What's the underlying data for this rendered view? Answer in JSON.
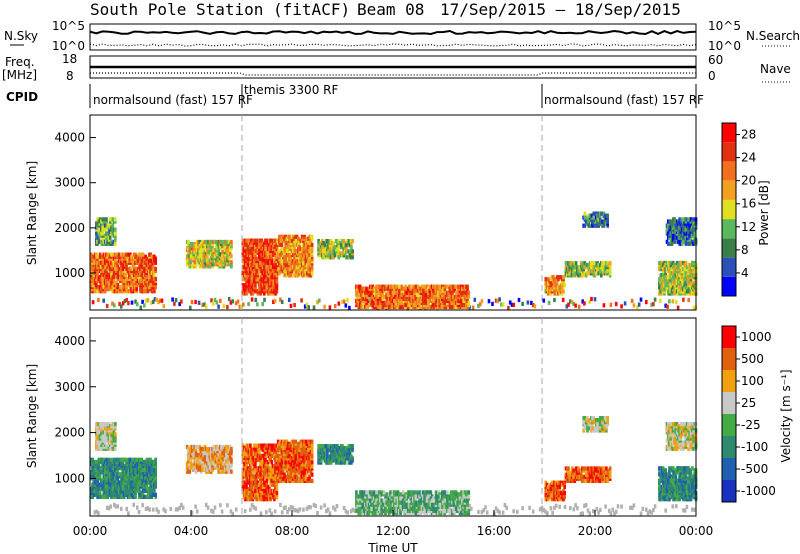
{
  "title": {
    "station": "South Pole Station (fitACF)",
    "beam": "Beam 08",
    "dates": "17/Sep/2015 – 18/Sep/2015"
  },
  "top_panels": {
    "nsky_label": "N.Sky",
    "nsky_ticks": [
      "10^5",
      "10^0"
    ],
    "nsearch_label": "N.Search",
    "nsearch_ticks": [
      "10^5",
      "10^0"
    ],
    "freq_label_1": "Freq.",
    "freq_label_2": "[MHz]",
    "freq_ticks": [
      "18",
      "8"
    ],
    "nave_label": "Nave",
    "nave_ticks": [
      "60",
      "0"
    ],
    "cpid_label": "CPID",
    "cpid_segments": [
      {
        "name": "normalsound (fast) 157 RF",
        "start": 0,
        "end": 6
      },
      {
        "name": "themis 3300 RF",
        "start": 6,
        "end": 18
      },
      {
        "name": "normalsound (fast) 157 RF",
        "start": 18,
        "end": 24
      }
    ]
  },
  "colors": {
    "power": [
      "#0000ff",
      "#2b50b8",
      "#3a7f4a",
      "#5cb85c",
      "#e0e020",
      "#f2a020",
      "#f07020",
      "#e03010",
      "#ff0000"
    ],
    "velocity": [
      "#ff0000",
      "#e06010",
      "#f0a010",
      "#c8c8c8",
      "#44aa44",
      "#2e8a6e",
      "#2060b0",
      "#1a30c0"
    ],
    "ground_scatter": "#b0b0b0"
  },
  "chart_data": [
    {
      "type": "heatmap",
      "name": "power",
      "xlabel": "",
      "ylabel": "Slant Range [km]",
      "xlim": [
        0,
        24
      ],
      "ylim": [
        180,
        4500
      ],
      "yticks": [
        "1000",
        "2000",
        "3000",
        "4000"
      ],
      "colorbar_label": "Power [dB]",
      "colorbar_ticks": [
        "4",
        "8",
        "12",
        "16",
        "20",
        "24",
        "28"
      ],
      "colorbar_range": [
        0,
        30
      ],
      "echo_regions": [
        {
          "t0": 0.0,
          "t1": 2.6,
          "r0": 550,
          "r1": 1400,
          "level": 22
        },
        {
          "t0": 0.2,
          "t1": 1.0,
          "r0": 1600,
          "r1": 2200,
          "level": 10
        },
        {
          "t0": 3.8,
          "t1": 5.6,
          "r0": 1100,
          "r1": 1700,
          "level": 15
        },
        {
          "t0": 6.0,
          "t1": 7.4,
          "r0": 500,
          "r1": 1700,
          "level": 24
        },
        {
          "t0": 7.4,
          "t1": 8.8,
          "r0": 900,
          "r1": 1800,
          "level": 20
        },
        {
          "t0": 9.0,
          "t1": 10.4,
          "r0": 1300,
          "r1": 1700,
          "level": 13
        },
        {
          "t0": 10.5,
          "t1": 15.0,
          "r0": 200,
          "r1": 700,
          "level": 22
        },
        {
          "t0": 18.0,
          "t1": 18.8,
          "r0": 500,
          "r1": 900,
          "level": 19
        },
        {
          "t0": 18.8,
          "t1": 20.6,
          "r0": 900,
          "r1": 1200,
          "level": 13
        },
        {
          "t0": 19.5,
          "t1": 20.5,
          "r0": 2000,
          "r1": 2300,
          "level": 8
        },
        {
          "t0": 22.5,
          "t1": 24.0,
          "r0": 500,
          "r1": 1200,
          "level": 14
        },
        {
          "t0": 22.8,
          "t1": 24.0,
          "r0": 1600,
          "r1": 2200,
          "level": 7
        }
      ]
    },
    {
      "type": "heatmap",
      "name": "velocity",
      "xlabel": "Time UT",
      "ylabel": "Slant Range [km]",
      "xlim": [
        0,
        24
      ],
      "ylim": [
        180,
        4500
      ],
      "yticks": [
        "1000",
        "2000",
        "3000",
        "4000"
      ],
      "xticks": [
        "00:00",
        "04:00",
        "08:00",
        "12:00",
        "16:00",
        "20:00",
        "00:00"
      ],
      "colorbar_label": "Velocity [m s⁻¹]",
      "colorbar_ticks": [
        "1000",
        "500",
        "100",
        "25",
        "-25",
        "-100",
        "-500",
        "-1000"
      ],
      "echo_regions": [
        {
          "t0": 0.0,
          "t1": 2.6,
          "r0": 550,
          "r1": 1400,
          "level": 5
        },
        {
          "t0": 0.2,
          "t1": 1.0,
          "r0": 1600,
          "r1": 2200,
          "level": 3
        },
        {
          "t0": 3.8,
          "t1": 5.6,
          "r0": 1100,
          "r1": 1700,
          "level": 2
        },
        {
          "t0": 6.0,
          "t1": 7.4,
          "r0": 500,
          "r1": 1700,
          "level": 1
        },
        {
          "t0": 7.4,
          "t1": 8.8,
          "r0": 900,
          "r1": 1800,
          "level": 1
        },
        {
          "t0": 9.0,
          "t1": 10.4,
          "r0": 1300,
          "r1": 1700,
          "level": 5
        },
        {
          "t0": 10.5,
          "t1": 15.0,
          "r0": 200,
          "r1": 700,
          "level": 4
        },
        {
          "t0": 18.0,
          "t1": 18.8,
          "r0": 500,
          "r1": 900,
          "level": 1
        },
        {
          "t0": 18.8,
          "t1": 20.6,
          "r0": 900,
          "r1": 1200,
          "level": 1
        },
        {
          "t0": 19.5,
          "t1": 20.5,
          "r0": 2000,
          "r1": 2300,
          "level": 3
        },
        {
          "t0": 22.5,
          "t1": 24.0,
          "r0": 500,
          "r1": 1200,
          "level": 5
        },
        {
          "t0": 22.8,
          "t1": 24.0,
          "r0": 1600,
          "r1": 2200,
          "level": 3
        }
      ]
    }
  ]
}
